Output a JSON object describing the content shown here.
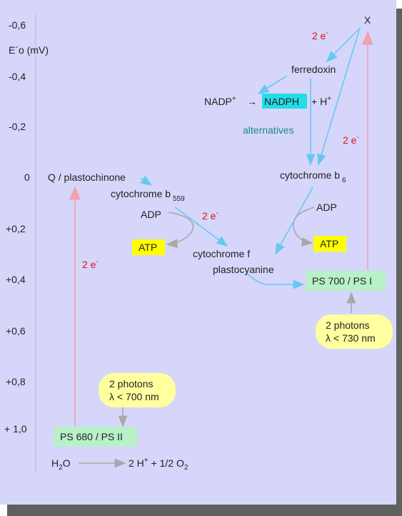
{
  "axis": {
    "label": "E´o (mV)",
    "ticks": [
      "-0,6",
      "-0,4",
      "-0,2",
      "0",
      "+0,2",
      "+0,4",
      "+0,6",
      "+0,8",
      "+ 1,0"
    ]
  },
  "nodes": {
    "x": "X",
    "ferredoxin": "ferredoxin",
    "nadp": {
      "text": "NADP",
      "sup": "+"
    },
    "arrow": "→",
    "nadph": "NADPH",
    "h": {
      "text": "+ H",
      "sup": "+"
    },
    "alternatives": "alternatives",
    "cyt_b6": {
      "text": "cytochrome b",
      "sub": "6"
    },
    "plastoquinone": "Q / plastochinone",
    "cyt_b559": {
      "text": "cytochrome b",
      "sub": "559"
    },
    "adp_1": "ADP",
    "adp_2": "ADP",
    "atp_1": "ATP",
    "atp_2": "ATP",
    "cyt_f": "cytochrome f",
    "plastocyanine": "plastocyanine",
    "ps1": "PS 700 / PS I",
    "ps2": "PS 680 / PS II",
    "photons_1": {
      "line1": "2 photons",
      "line2": "λ < 730 nm"
    },
    "photons_2": {
      "line1": "2 photons",
      "line2": "λ < 700 nm"
    },
    "water": {
      "text": "H",
      "sub": "2",
      "text2": "O"
    },
    "products": {
      "text": "2 H",
      "sup": "+",
      "text2": " + 1/2 O",
      "sub": "2"
    }
  },
  "electrons": [
    {
      "text": "2 e",
      "sup": "-"
    },
    {
      "text": "2 e",
      "sup": "-"
    },
    {
      "text": "2 e",
      "sup": "-"
    },
    {
      "text": "2 e",
      "sup": "-"
    }
  ]
}
